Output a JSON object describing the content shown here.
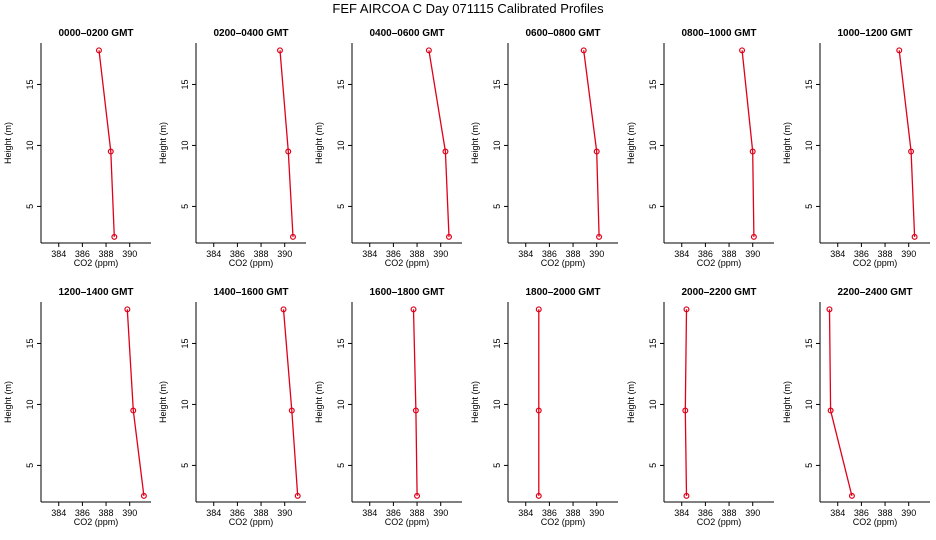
{
  "chart_data": {
    "type": "line",
    "title": "FEF AIRCOA C  Day 071115  Calibrated Profiles",
    "xlabel": "CO2 (ppm)",
    "ylabel": "Height (m)",
    "xlim": [
      382.5,
      391.8
    ],
    "ylim": [
      2.0,
      18.4
    ],
    "x_ticks": [
      "384",
      "386",
      "388",
      "390"
    ],
    "y_ticks": [
      "5",
      "10",
      "15"
    ],
    "line_color": "#e0001a",
    "panels": [
      {
        "title": "0000–0200 GMT",
        "points": [
          {
            "x": 387.4,
            "y": 17.8
          },
          {
            "x": 388.4,
            "y": 9.5
          },
          {
            "x": 388.7,
            "y": 2.5
          }
        ]
      },
      {
        "title": "0200–0400 GMT",
        "points": [
          {
            "x": 389.6,
            "y": 17.8
          },
          {
            "x": 390.3,
            "y": 9.5
          },
          {
            "x": 390.7,
            "y": 2.5
          }
        ]
      },
      {
        "title": "0400–0600 GMT",
        "points": [
          {
            "x": 389.0,
            "y": 17.8
          },
          {
            "x": 390.4,
            "y": 9.5
          },
          {
            "x": 390.7,
            "y": 2.5
          }
        ]
      },
      {
        "title": "0600–0800 GMT",
        "points": [
          {
            "x": 388.9,
            "y": 17.8
          },
          {
            "x": 390.0,
            "y": 9.5
          },
          {
            "x": 390.2,
            "y": 2.5
          }
        ]
      },
      {
        "title": "0800–1000 GMT",
        "points": [
          {
            "x": 389.1,
            "y": 17.8
          },
          {
            "x": 390.0,
            "y": 9.5
          },
          {
            "x": 390.1,
            "y": 2.5
          }
        ]
      },
      {
        "title": "1000–1200 GMT",
        "points": [
          {
            "x": 389.2,
            "y": 17.8
          },
          {
            "x": 390.2,
            "y": 9.5
          },
          {
            "x": 390.5,
            "y": 2.5
          }
        ]
      },
      {
        "title": "1200–1400 GMT",
        "points": [
          {
            "x": 389.8,
            "y": 17.8
          },
          {
            "x": 390.3,
            "y": 9.5
          },
          {
            "x": 391.2,
            "y": 2.5
          }
        ]
      },
      {
        "title": "1400–1600 GMT",
        "points": [
          {
            "x": 389.9,
            "y": 17.8
          },
          {
            "x": 390.6,
            "y": 9.5
          },
          {
            "x": 391.1,
            "y": 2.5
          }
        ]
      },
      {
        "title": "1600–1800 GMT",
        "points": [
          {
            "x": 387.7,
            "y": 17.8
          },
          {
            "x": 387.9,
            "y": 9.5
          },
          {
            "x": 388.0,
            "y": 2.5
          }
        ]
      },
      {
        "title": "1800–2000 GMT",
        "points": [
          {
            "x": 385.1,
            "y": 17.8
          },
          {
            "x": 385.1,
            "y": 9.5
          },
          {
            "x": 385.1,
            "y": 2.5
          }
        ]
      },
      {
        "title": "2000–2200 GMT",
        "points": [
          {
            "x": 384.4,
            "y": 17.8
          },
          {
            "x": 384.3,
            "y": 9.5
          },
          {
            "x": 384.4,
            "y": 2.5
          }
        ]
      },
      {
        "title": "2200–2400 GMT",
        "points": [
          {
            "x": 383.3,
            "y": 17.8
          },
          {
            "x": 383.4,
            "y": 9.5
          },
          {
            "x": 385.2,
            "y": 2.5
          }
        ]
      }
    ]
  }
}
